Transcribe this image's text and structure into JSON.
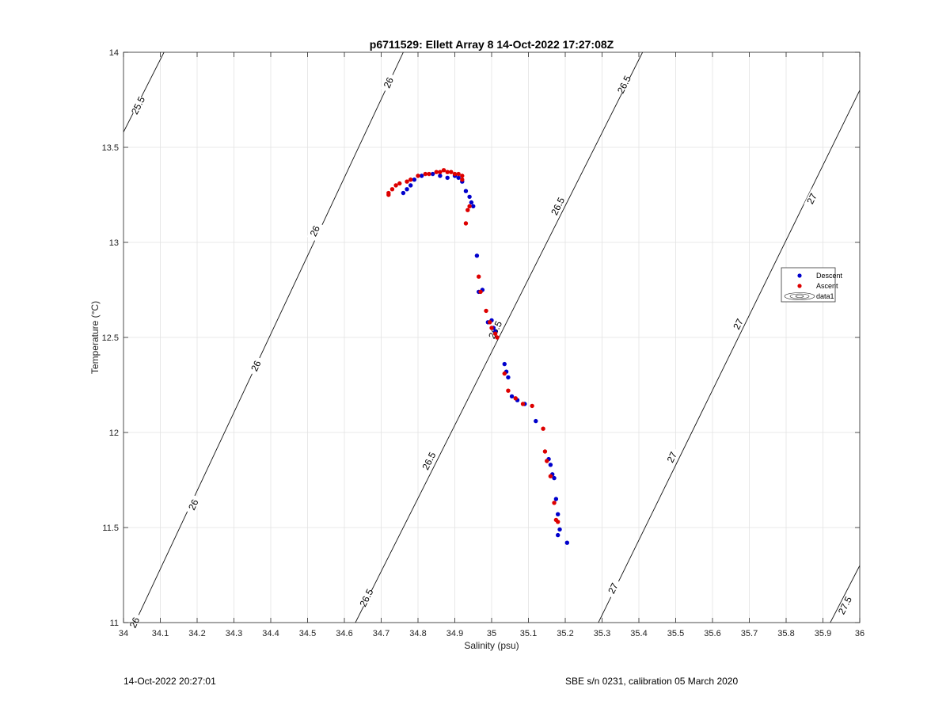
{
  "footer": {
    "left": "14-Oct-2022 20:27:01",
    "right": "SBE s/n 0231, calibration 05 March 2020"
  },
  "chart_data": {
    "type": "scatter",
    "title": "p6711529: Ellett Array 8 14-Oct-2022 17:27:08Z",
    "xlabel": "Salinity (psu)",
    "ylabel": "Temperature (°C)",
    "xlim": [
      34,
      36
    ],
    "ylim": [
      11,
      14
    ],
    "x_ticks": [
      "34",
      "34.1",
      "34.2",
      "34.3",
      "34.4",
      "34.5",
      "34.6",
      "34.7",
      "34.8",
      "34.9",
      "35",
      "35.1",
      "35.2",
      "35.3",
      "35.4",
      "35.5",
      "35.6",
      "35.7",
      "35.8",
      "35.9",
      "36"
    ],
    "y_ticks": [
      "11",
      "11.5",
      "12",
      "12.5",
      "13",
      "13.5",
      "14"
    ],
    "grid": true,
    "legend_position": "right",
    "legend": [
      "Descent",
      "Ascent",
      "data1"
    ],
    "series": [
      {
        "name": "Descent",
        "color": "#0000cc",
        "points": [
          [
            34.76,
            13.26
          ],
          [
            34.77,
            13.28
          ],
          [
            34.78,
            13.3
          ],
          [
            34.79,
            13.33
          ],
          [
            34.81,
            13.35
          ],
          [
            34.84,
            13.36
          ],
          [
            34.86,
            13.35
          ],
          [
            34.88,
            13.34
          ],
          [
            34.9,
            13.35
          ],
          [
            34.91,
            13.34
          ],
          [
            34.92,
            13.32
          ],
          [
            34.93,
            13.27
          ],
          [
            34.94,
            13.24
          ],
          [
            34.945,
            13.21
          ],
          [
            34.95,
            13.19
          ],
          [
            34.96,
            12.93
          ],
          [
            34.965,
            12.74
          ],
          [
            34.975,
            12.75
          ],
          [
            34.99,
            12.58
          ],
          [
            35.0,
            12.59
          ],
          [
            35.005,
            12.55
          ],
          [
            35.01,
            12.53
          ],
          [
            35.035,
            12.36
          ],
          [
            35.04,
            12.32
          ],
          [
            35.045,
            12.29
          ],
          [
            35.055,
            12.19
          ],
          [
            35.07,
            12.17
          ],
          [
            35.09,
            12.15
          ],
          [
            35.12,
            12.06
          ],
          [
            35.155,
            11.86
          ],
          [
            35.16,
            11.83
          ],
          [
            35.165,
            11.78
          ],
          [
            35.17,
            11.76
          ],
          [
            35.175,
            11.65
          ],
          [
            35.18,
            11.57
          ],
          [
            35.185,
            11.49
          ],
          [
            35.18,
            11.46
          ],
          [
            35.205,
            11.42
          ]
        ]
      },
      {
        "name": "Ascent",
        "color": "#dd0000",
        "points": [
          [
            34.72,
            13.25
          ],
          [
            34.72,
            13.26
          ],
          [
            34.73,
            13.28
          ],
          [
            34.74,
            13.3
          ],
          [
            34.75,
            13.31
          ],
          [
            34.77,
            13.32
          ],
          [
            34.78,
            13.33
          ],
          [
            34.8,
            13.35
          ],
          [
            34.82,
            13.36
          ],
          [
            34.83,
            13.36
          ],
          [
            34.85,
            13.37
          ],
          [
            34.86,
            13.37
          ],
          [
            34.87,
            13.38
          ],
          [
            34.88,
            13.37
          ],
          [
            34.89,
            13.37
          ],
          [
            34.9,
            13.36
          ],
          [
            34.91,
            13.36
          ],
          [
            34.92,
            13.35
          ],
          [
            34.92,
            13.33
          ],
          [
            34.935,
            13.17
          ],
          [
            34.94,
            13.19
          ],
          [
            34.93,
            13.1
          ],
          [
            34.965,
            12.82
          ],
          [
            34.97,
            12.74
          ],
          [
            34.985,
            12.64
          ],
          [
            34.995,
            12.58
          ],
          [
            35.0,
            12.55
          ],
          [
            35.01,
            12.52
          ],
          [
            35.015,
            12.5
          ],
          [
            35.035,
            12.31
          ],
          [
            35.045,
            12.22
          ],
          [
            35.065,
            12.18
          ],
          [
            35.085,
            12.15
          ],
          [
            35.11,
            12.14
          ],
          [
            35.14,
            12.02
          ],
          [
            35.145,
            11.9
          ],
          [
            35.15,
            11.85
          ],
          [
            35.16,
            11.77
          ],
          [
            35.17,
            11.63
          ],
          [
            35.175,
            11.54
          ],
          [
            35.18,
            11.53
          ]
        ]
      }
    ],
    "isopycnals": [
      {
        "label": "25.5",
        "points": [
          [
            34.0,
            13.58
          ],
          [
            34.11,
            14.0
          ]
        ],
        "label_at": [
          [
            34.04,
            13.72
          ]
        ]
      },
      {
        "label": "26",
        "points": [
          [
            34.0,
            10.87
          ],
          [
            34.76,
            14.0
          ]
        ],
        "label_at": [
          [
            34.03,
            11.0
          ],
          [
            34.19,
            11.62
          ],
          [
            34.36,
            12.35
          ],
          [
            34.52,
            13.06
          ],
          [
            34.72,
            13.84
          ]
        ]
      },
      {
        "label": "26.5",
        "points": [
          [
            34.63,
            11.0
          ],
          [
            35.41,
            14.0
          ]
        ],
        "label_at": [
          [
            34.66,
            11.13
          ],
          [
            34.83,
            11.85
          ],
          [
            35.01,
            12.54
          ],
          [
            35.18,
            13.19
          ],
          [
            35.36,
            13.83
          ]
        ]
      },
      {
        "label": "27",
        "points": [
          [
            35.29,
            11.0
          ],
          [
            36.0,
            13.8
          ]
        ],
        "label_at": [
          [
            35.33,
            11.18
          ],
          [
            35.49,
            11.87
          ],
          [
            35.67,
            12.57
          ],
          [
            35.87,
            13.23
          ]
        ]
      },
      {
        "label": "27.5",
        "points": [
          [
            35.92,
            11.0
          ],
          [
            36.0,
            11.3
          ]
        ],
        "label_at": [
          [
            35.96,
            11.09
          ]
        ]
      }
    ]
  }
}
